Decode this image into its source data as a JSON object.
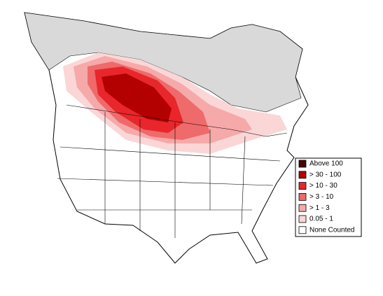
{
  "legend": {
    "items": [
      {
        "label": "Above 100",
        "color": "#4a0000"
      },
      {
        "label": "> 30 - 100",
        "color": "#b30000"
      },
      {
        "label": "> 10 - 30",
        "color": "#e8262b"
      },
      {
        "label": "> 3 - 10",
        "color": "#ef6a6a"
      },
      {
        "label": "> 1 - 3",
        "color": "#f6a9a9"
      },
      {
        "label": "0.05 - 1",
        "color": "#fbd6d6"
      },
      {
        "label": "None Counted",
        "color": "#ffffff"
      }
    ]
  }
}
